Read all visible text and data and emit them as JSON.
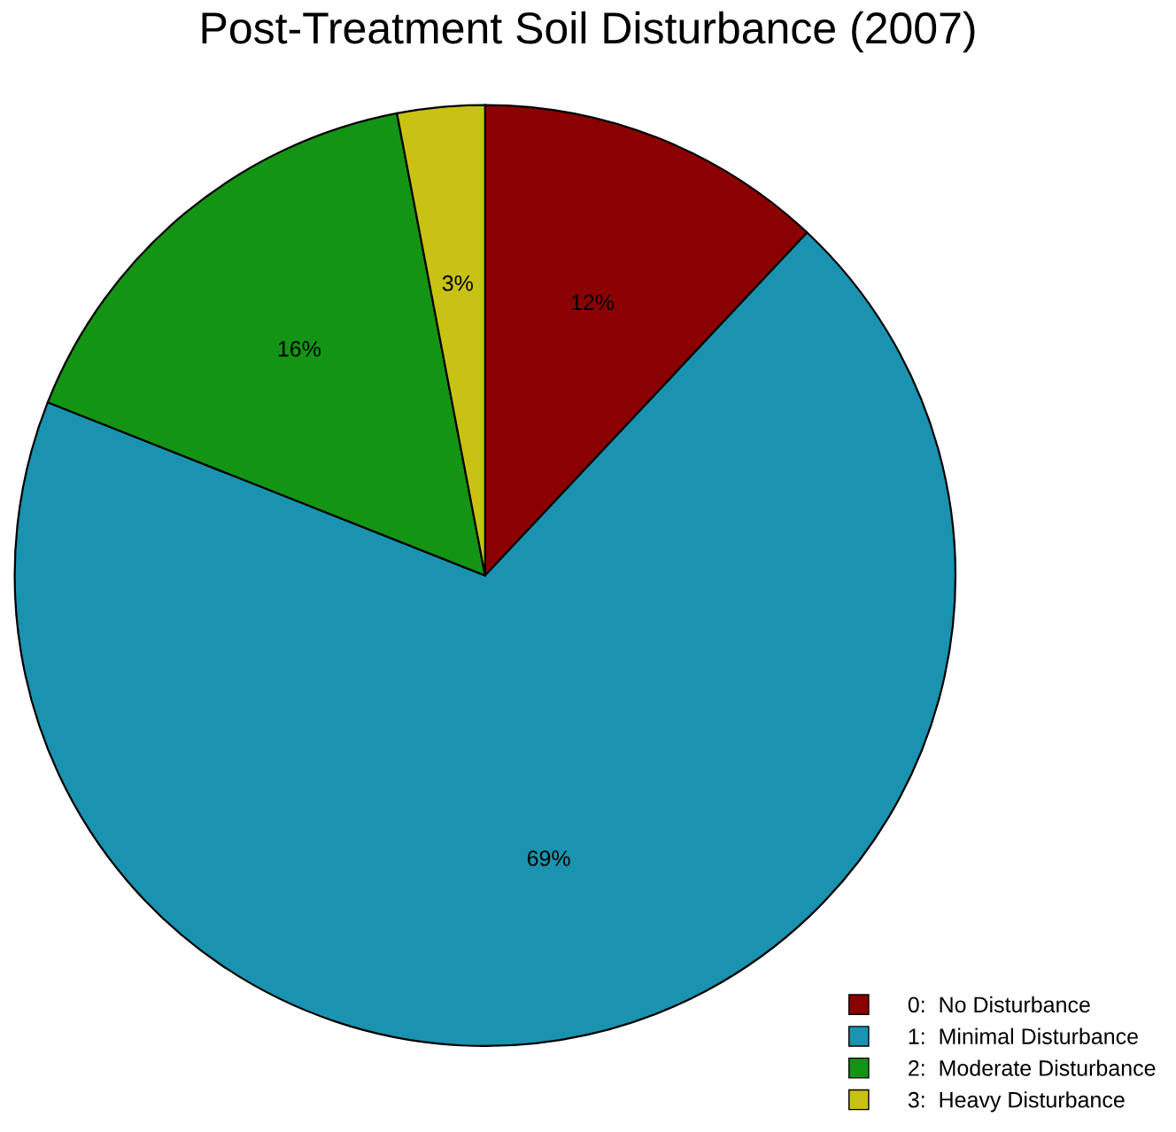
{
  "chart_data": {
    "type": "pie",
    "title": "Post-Treatment Soil Disturbance (2007)",
    "categories": [
      "0:  No Disturbance",
      "1:  Minimal Disturbance",
      "2:  Moderate Disturbance",
      "3:  Heavy Disturbance"
    ],
    "values": [
      12,
      69,
      16,
      3
    ],
    "colors": [
      "#8b0000",
      "#1a93b0",
      "#149414",
      "#c8c214"
    ],
    "value_labels": [
      "12%",
      "69%",
      "16%",
      "3%"
    ],
    "legend": "bottom right"
  }
}
